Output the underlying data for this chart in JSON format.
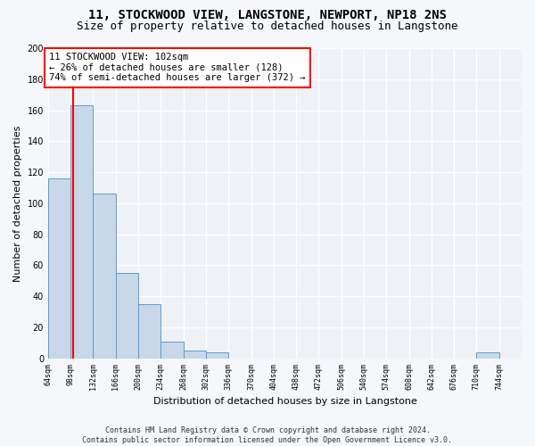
{
  "title": "11, STOCKWOOD VIEW, LANGSTONE, NEWPORT, NP18 2NS",
  "subtitle": "Size of property relative to detached houses in Langstone",
  "xlabel": "Distribution of detached houses by size in Langstone",
  "ylabel": "Number of detached properties",
  "bar_edges": [
    64,
    98,
    132,
    166,
    200,
    234,
    268,
    302,
    336,
    370,
    404,
    438,
    472,
    506,
    540,
    574,
    608,
    642,
    676,
    710,
    744
  ],
  "bar_heights": [
    116,
    163,
    106,
    55,
    35,
    11,
    5,
    4,
    0,
    0,
    0,
    0,
    0,
    0,
    0,
    0,
    0,
    0,
    0,
    4
  ],
  "bar_color": "#c8d8e8",
  "bar_edge_color": "#5b9bd5",
  "red_line_x": 102,
  "annotation_text": "11 STOCKWOOD VIEW: 102sqm\n← 26% of detached houses are smaller (128)\n74% of semi-detached houses are larger (372) →",
  "annotation_box_color": "white",
  "annotation_box_edge_color": "red",
  "red_line_color": "red",
  "ylim": [
    0,
    200
  ],
  "yticks": [
    0,
    20,
    40,
    60,
    80,
    100,
    120,
    140,
    160,
    180,
    200
  ],
  "tick_labels": [
    "64sqm",
    "98sqm",
    "132sqm",
    "166sqm",
    "200sqm",
    "234sqm",
    "268sqm",
    "302sqm",
    "336sqm",
    "370sqm",
    "404sqm",
    "438sqm",
    "472sqm",
    "506sqm",
    "540sqm",
    "574sqm",
    "608sqm",
    "642sqm",
    "676sqm",
    "710sqm",
    "744sqm"
  ],
  "footer": "Contains HM Land Registry data © Crown copyright and database right 2024.\nContains public sector information licensed under the Open Government Licence v3.0.",
  "bg_color": "#eef2f7",
  "grid_color": "#ffffff",
  "fig_bg_color": "#f5f7fa",
  "title_fontsize": 10,
  "subtitle_fontsize": 9,
  "ylabel_fontsize": 8,
  "xlabel_fontsize": 8,
  "annotation_fontsize": 7.5,
  "footer_fontsize": 6,
  "ytick_fontsize": 7,
  "xtick_fontsize": 6
}
